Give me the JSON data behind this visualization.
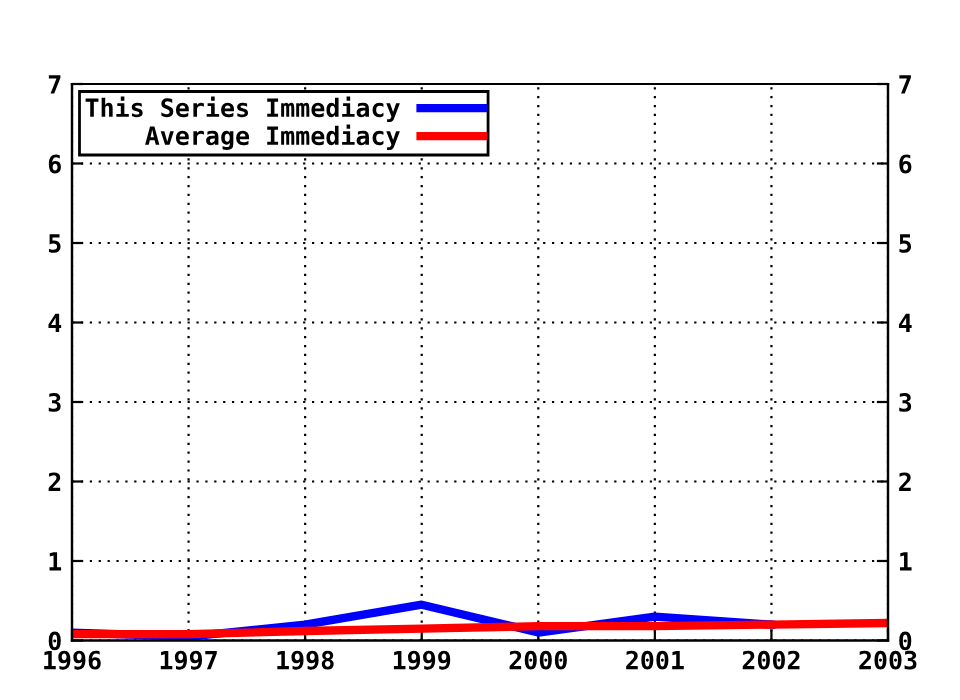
{
  "chart_data": {
    "type": "line",
    "x": [
      1996,
      1997,
      1998,
      1999,
      2000,
      2001,
      2002,
      2003
    ],
    "series": [
      {
        "name": "This Series Immediacy",
        "color": "#0000ff",
        "values": [
          0.1,
          0.05,
          0.2,
          0.45,
          0.1,
          0.3,
          0.2,
          null
        ]
      },
      {
        "name": "Average Immediacy",
        "color": "#ff0000",
        "values": [
          0.08,
          0.08,
          0.12,
          0.15,
          0.18,
          0.18,
          0.2,
          0.22
        ]
      }
    ],
    "xlim": [
      1996,
      2003
    ],
    "xticks": [
      1996,
      1997,
      1998,
      1999,
      2000,
      2001,
      2002,
      2003
    ],
    "ylim": [
      0,
      7
    ],
    "yticks": [
      0,
      1,
      2,
      3,
      4,
      5,
      6,
      7
    ],
    "y2lim": [
      0,
      7
    ],
    "y2ticks": [
      0,
      1,
      2,
      3,
      4,
      5,
      6,
      7
    ],
    "grid": true,
    "legend": "top left",
    "marker": "none",
    "line_style": "solid"
  }
}
